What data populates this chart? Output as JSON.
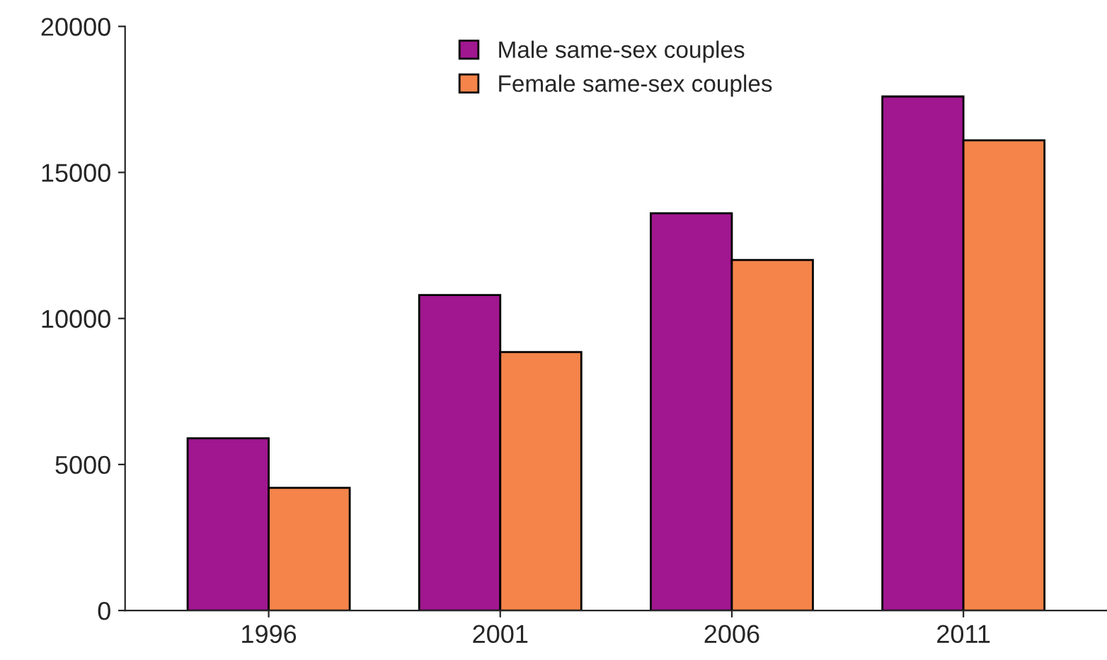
{
  "chart_data": {
    "type": "bar",
    "categories": [
      "1996",
      "2001",
      "2006",
      "2011"
    ],
    "series": [
      {
        "name": "Male same-sex couples",
        "color": "#a0178f",
        "values": [
          5900,
          10800,
          13600,
          17600
        ]
      },
      {
        "name": "Female same-sex couples",
        "color": "#f4844a",
        "values": [
          4200,
          8850,
          12000,
          16100
        ]
      }
    ],
    "ylim": [
      0,
      20000
    ],
    "yticks": [
      0,
      5000,
      10000,
      15000,
      20000
    ],
    "grid": false,
    "legend": "top"
  }
}
